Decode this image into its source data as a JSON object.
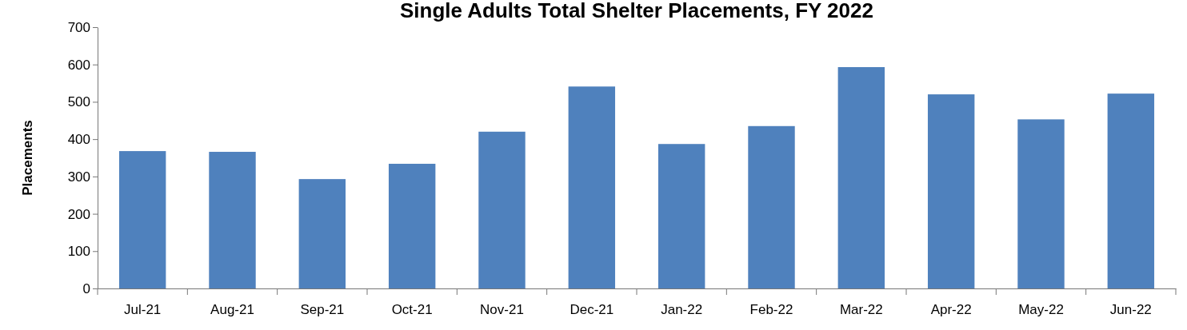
{
  "chart_data": {
    "type": "bar",
    "title": "Single Adults Total Shelter Placements, FY 2022",
    "ylabel": "Placements",
    "categories": [
      "Jul-21",
      "Aug-21",
      "Sep-21",
      "Oct-21",
      "Nov-21",
      "Dec-21",
      "Jan-22",
      "Feb-22",
      "Mar-22",
      "Apr-22",
      "May-22",
      "Jun-22"
    ],
    "values": [
      368,
      366,
      293,
      334,
      420,
      541,
      387,
      435,
      593,
      520,
      453,
      522
    ],
    "color": "#4f81bd",
    "ylim": [
      0,
      700
    ],
    "yticks": [
      0,
      100,
      200,
      300,
      400,
      500,
      600,
      700
    ],
    "grid": false
  }
}
